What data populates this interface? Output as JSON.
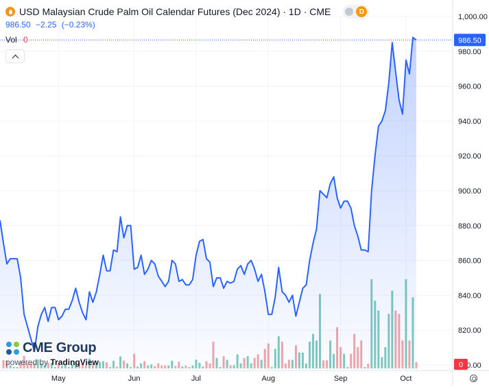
{
  "header": {
    "title": "USD Malaysian Crude Palm Oil Calendar Futures (Dec 2024) · 1D · CME",
    "badge": "D",
    "icon": "flame-icon"
  },
  "quote": {
    "last": "986.50",
    "change": "−2.25",
    "change_pct": "(−0.23%)"
  },
  "volume": {
    "label": "Vol",
    "value": "0"
  },
  "price_tag": "986.50",
  "volume_tag": "0",
  "branding": {
    "company": "CME Group",
    "powered_prefix": "powered by",
    "powered_name": "TradingView"
  },
  "colors": {
    "line": "#2962ff",
    "up_volume": "#7fc9bd",
    "down_volume": "#f0a5a8",
    "price_tag": "#2962ff",
    "volume_tag": "#f23645"
  },
  "chart_data": {
    "type": "area",
    "x_tick_labels": [
      "May",
      "Jun",
      "Jul",
      "Aug",
      "Sep",
      "Oct"
    ],
    "y_tick_labels": [
      "1,000.00",
      "980.00",
      "960.00",
      "940.00",
      "920.00",
      "900.00",
      "880.00",
      "860.00",
      "840.00",
      "820.00",
      "800.00"
    ],
    "ylim": [
      800,
      1000
    ],
    "x_ticks_index": [
      17,
      39,
      57,
      78,
      99,
      118
    ],
    "price": [
      883,
      870,
      858,
      861,
      861,
      861,
      850,
      829,
      822,
      815,
      808,
      822,
      829,
      833,
      825,
      833,
      833,
      826,
      828,
      832,
      832,
      837,
      844,
      836,
      830,
      826,
      842,
      836,
      842,
      852,
      863,
      854,
      854,
      866,
      865,
      885,
      873,
      880,
      880,
      855,
      856,
      863,
      852,
      855,
      860,
      858,
      851,
      848,
      845,
      848,
      860,
      858,
      848,
      849,
      846,
      846,
      849,
      863,
      871,
      872,
      861,
      859,
      845,
      850,
      850,
      844,
      848,
      847,
      848,
      855,
      857,
      852,
      858,
      860,
      855,
      848,
      852,
      842,
      829,
      829,
      839,
      856,
      842,
      840,
      836,
      840,
      828,
      836,
      844,
      846,
      860,
      870,
      878,
      900,
      898,
      896,
      904,
      908,
      896,
      890,
      894,
      894,
      890,
      880,
      874,
      866,
      866,
      865,
      900,
      920,
      937,
      940,
      946,
      962,
      985,
      968,
      952,
      944,
      975,
      967,
      988,
      986.5
    ],
    "volume_up": [
      0,
      0,
      0,
      0,
      0,
      0,
      0,
      0,
      0,
      0,
      0,
      0,
      0,
      0,
      0,
      0,
      0,
      0,
      0,
      0,
      0,
      0,
      0,
      0,
      0,
      0,
      0,
      0,
      0,
      0,
      0,
      0,
      0,
      0,
      0,
      0,
      0,
      0,
      0,
      0,
      0,
      0,
      0,
      0,
      0,
      0,
      0,
      0,
      0,
      0,
      0,
      0,
      0,
      0,
      0,
      30,
      0,
      0,
      0,
      0,
      0,
      0,
      0,
      0,
      0,
      0,
      0,
      0,
      0,
      0,
      0,
      0,
      0,
      0,
      0,
      0,
      0,
      0,
      0,
      0,
      0,
      0,
      0,
      0,
      0,
      0,
      0,
      0,
      0,
      0,
      0,
      0,
      0,
      0,
      0,
      0,
      0,
      0,
      0,
      0,
      0,
      0,
      0,
      0,
      0,
      0,
      0,
      0,
      0,
      0,
      0,
      0,
      0,
      0,
      0,
      0,
      0,
      0,
      0,
      0,
      0,
      0
    ],
    "volume_labels_hidden": true
  }
}
